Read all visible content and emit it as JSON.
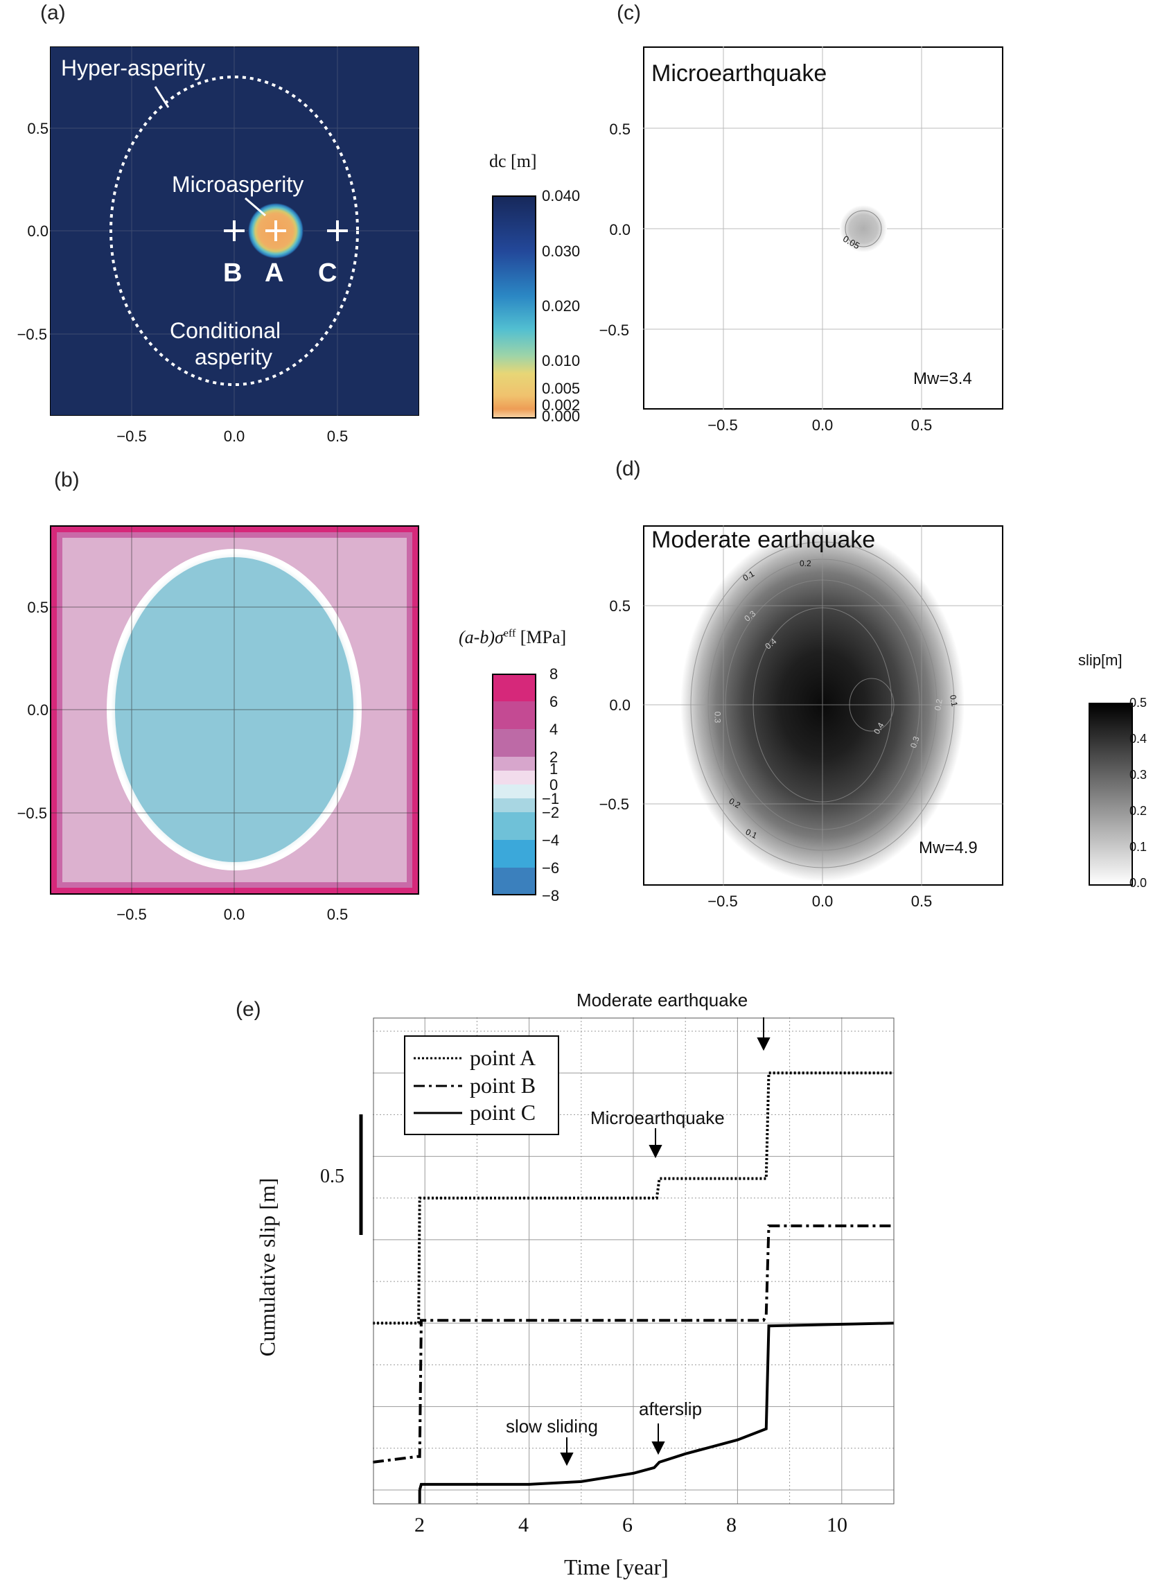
{
  "panels": {
    "a": {
      "label": "(a)",
      "annotations": {
        "hyper": "Hyper-asperity",
        "micro": "Microasperity",
        "cond1": "Conditional",
        "cond2": "asperity",
        "B": "B",
        "A": "A",
        "C": "C"
      },
      "yticks": [
        "0.5",
        "0.0",
        "−0.5"
      ],
      "xticks": [
        "−0.5",
        "0.0",
        "0.5"
      ],
      "colorbar": {
        "title": "dc [m]",
        "ticks": [
          "0.040",
          "0.030",
          "0.020",
          "0.010",
          "0.005",
          "0.002",
          "0.000"
        ]
      },
      "colors": {
        "background": "#1a2d5e",
        "microasperity": "#f0a860"
      }
    },
    "b": {
      "label": "(b)",
      "yticks": [
        "0.5",
        "0.0",
        "−0.5"
      ],
      "xticks": [
        "−0.5",
        "0.0",
        "0.5"
      ],
      "colorbar": {
        "title_a": "(a-b)σ",
        "title_sup": "eff",
        "title_unit": " [MPa]",
        "ticks": [
          "8",
          "6",
          "4",
          "2",
          "1",
          "0",
          "−1",
          "−2",
          "−4",
          "−6",
          "−8"
        ]
      },
      "colors": {
        "border": "#d6287a",
        "outer": "#dcb1cf",
        "inner": "#8ec8d8"
      }
    },
    "c": {
      "label": "(c)",
      "title": "Microearthquake",
      "mw": "Mw=3.4",
      "contour_label": "0.05",
      "yticks": [
        "0.5",
        "0.0",
        "−0.5"
      ],
      "xticks": [
        "−0.5",
        "0.0",
        "0.5"
      ]
    },
    "d": {
      "label": "(d)",
      "title": "Moderate earthquake",
      "mw": "Mw=4.9",
      "contour_labels": [
        "0.2",
        "0.1",
        "0.3",
        "0.4",
        "0.3",
        "0.4",
        "0.3",
        "0.2",
        "0.1",
        "0.2",
        "0.1"
      ],
      "yticks": [
        "0.5",
        "0.0",
        "−0.5"
      ],
      "xticks": [
        "−0.5",
        "0.0",
        "0.5"
      ],
      "colorbar": {
        "title": "slip[m]",
        "ticks": [
          "0.5",
          "0.4",
          "0.3",
          "0.2",
          "0.1",
          "0.0"
        ]
      }
    },
    "e": {
      "label": "(e)",
      "ylabel": "Cumulative slip [m]",
      "xlabel": "Time [year]",
      "scale_bar": "0.5",
      "xticks": [
        "2",
        "4",
        "6",
        "8",
        "10"
      ],
      "legend": [
        "point A",
        "point B",
        "point C"
      ],
      "annotations": {
        "moderate": "Moderate earthquake",
        "micro": "Microearthquake",
        "slow": "slow sliding",
        "after": "afterslip"
      }
    }
  },
  "chart_data": {
    "type": "line",
    "title": "",
    "xlabel": "Time [year]",
    "ylabel": "Cumulative slip [m]",
    "xlim": [
      1,
      11
    ],
    "series": [
      {
        "name": "point A",
        "style": "dotted",
        "x": [
          1,
          1.88,
          1.9,
          6.45,
          6.5,
          8.55,
          8.6,
          11
        ],
        "y": [
          0.6,
          0.6,
          1.05,
          1.05,
          1.12,
          1.12,
          1.5,
          1.5
        ]
      },
      {
        "name": "point B",
        "style": "dash-dot",
        "x": [
          1,
          1.85,
          1.9,
          1.93,
          8.5,
          8.55,
          8.6,
          11
        ],
        "y": [
          0.1,
          0.12,
          0.12,
          0.61,
          0.61,
          0.63,
          0.95,
          0.95
        ]
      },
      {
        "name": "point C",
        "style": "solid",
        "x": [
          1.9,
          1.93,
          4,
          5,
          6,
          6.4,
          6.5,
          7,
          8,
          8.55,
          8.6,
          11
        ],
        "y": [
          0.0,
          0.02,
          0.02,
          0.03,
          0.06,
          0.08,
          0.1,
          0.13,
          0.18,
          0.22,
          0.59,
          0.6
        ]
      }
    ]
  }
}
